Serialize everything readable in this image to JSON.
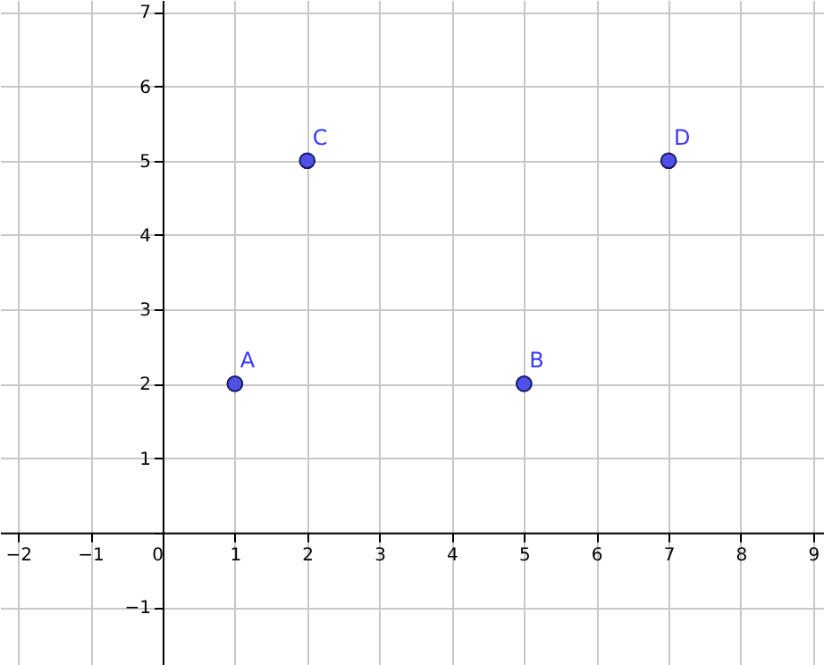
{
  "chart_data": {
    "type": "scatter",
    "x": [
      1,
      5,
      2,
      7
    ],
    "values": [
      2,
      2,
      5,
      5
    ],
    "color": "#5050e6",
    "xlim": [
      -2.25,
      9.15
    ],
    "ylim": [
      -1.78,
      7.16
    ],
    "xticks": [
      {
        "value": -2,
        "label": "−2"
      },
      {
        "value": -1,
        "label": "−1"
      },
      0,
      1,
      2,
      3,
      4,
      5,
      6,
      7,
      8,
      9
    ],
    "yticks": [
      {
        "value": -1,
        "label": "−1"
      },
      {
        "value": 0,
        "label": null
      },
      1,
      2,
      3,
      4,
      5,
      6,
      7
    ],
    "annotations": [
      {
        "text": "A",
        "x": 1,
        "y": 2
      },
      {
        "text": "B",
        "x": 5,
        "y": 2
      },
      {
        "text": "C",
        "x": 2,
        "y": 5
      },
      {
        "text": "D",
        "x": 7,
        "y": 5
      }
    ],
    "grid": true,
    "marker": "circle"
  }
}
